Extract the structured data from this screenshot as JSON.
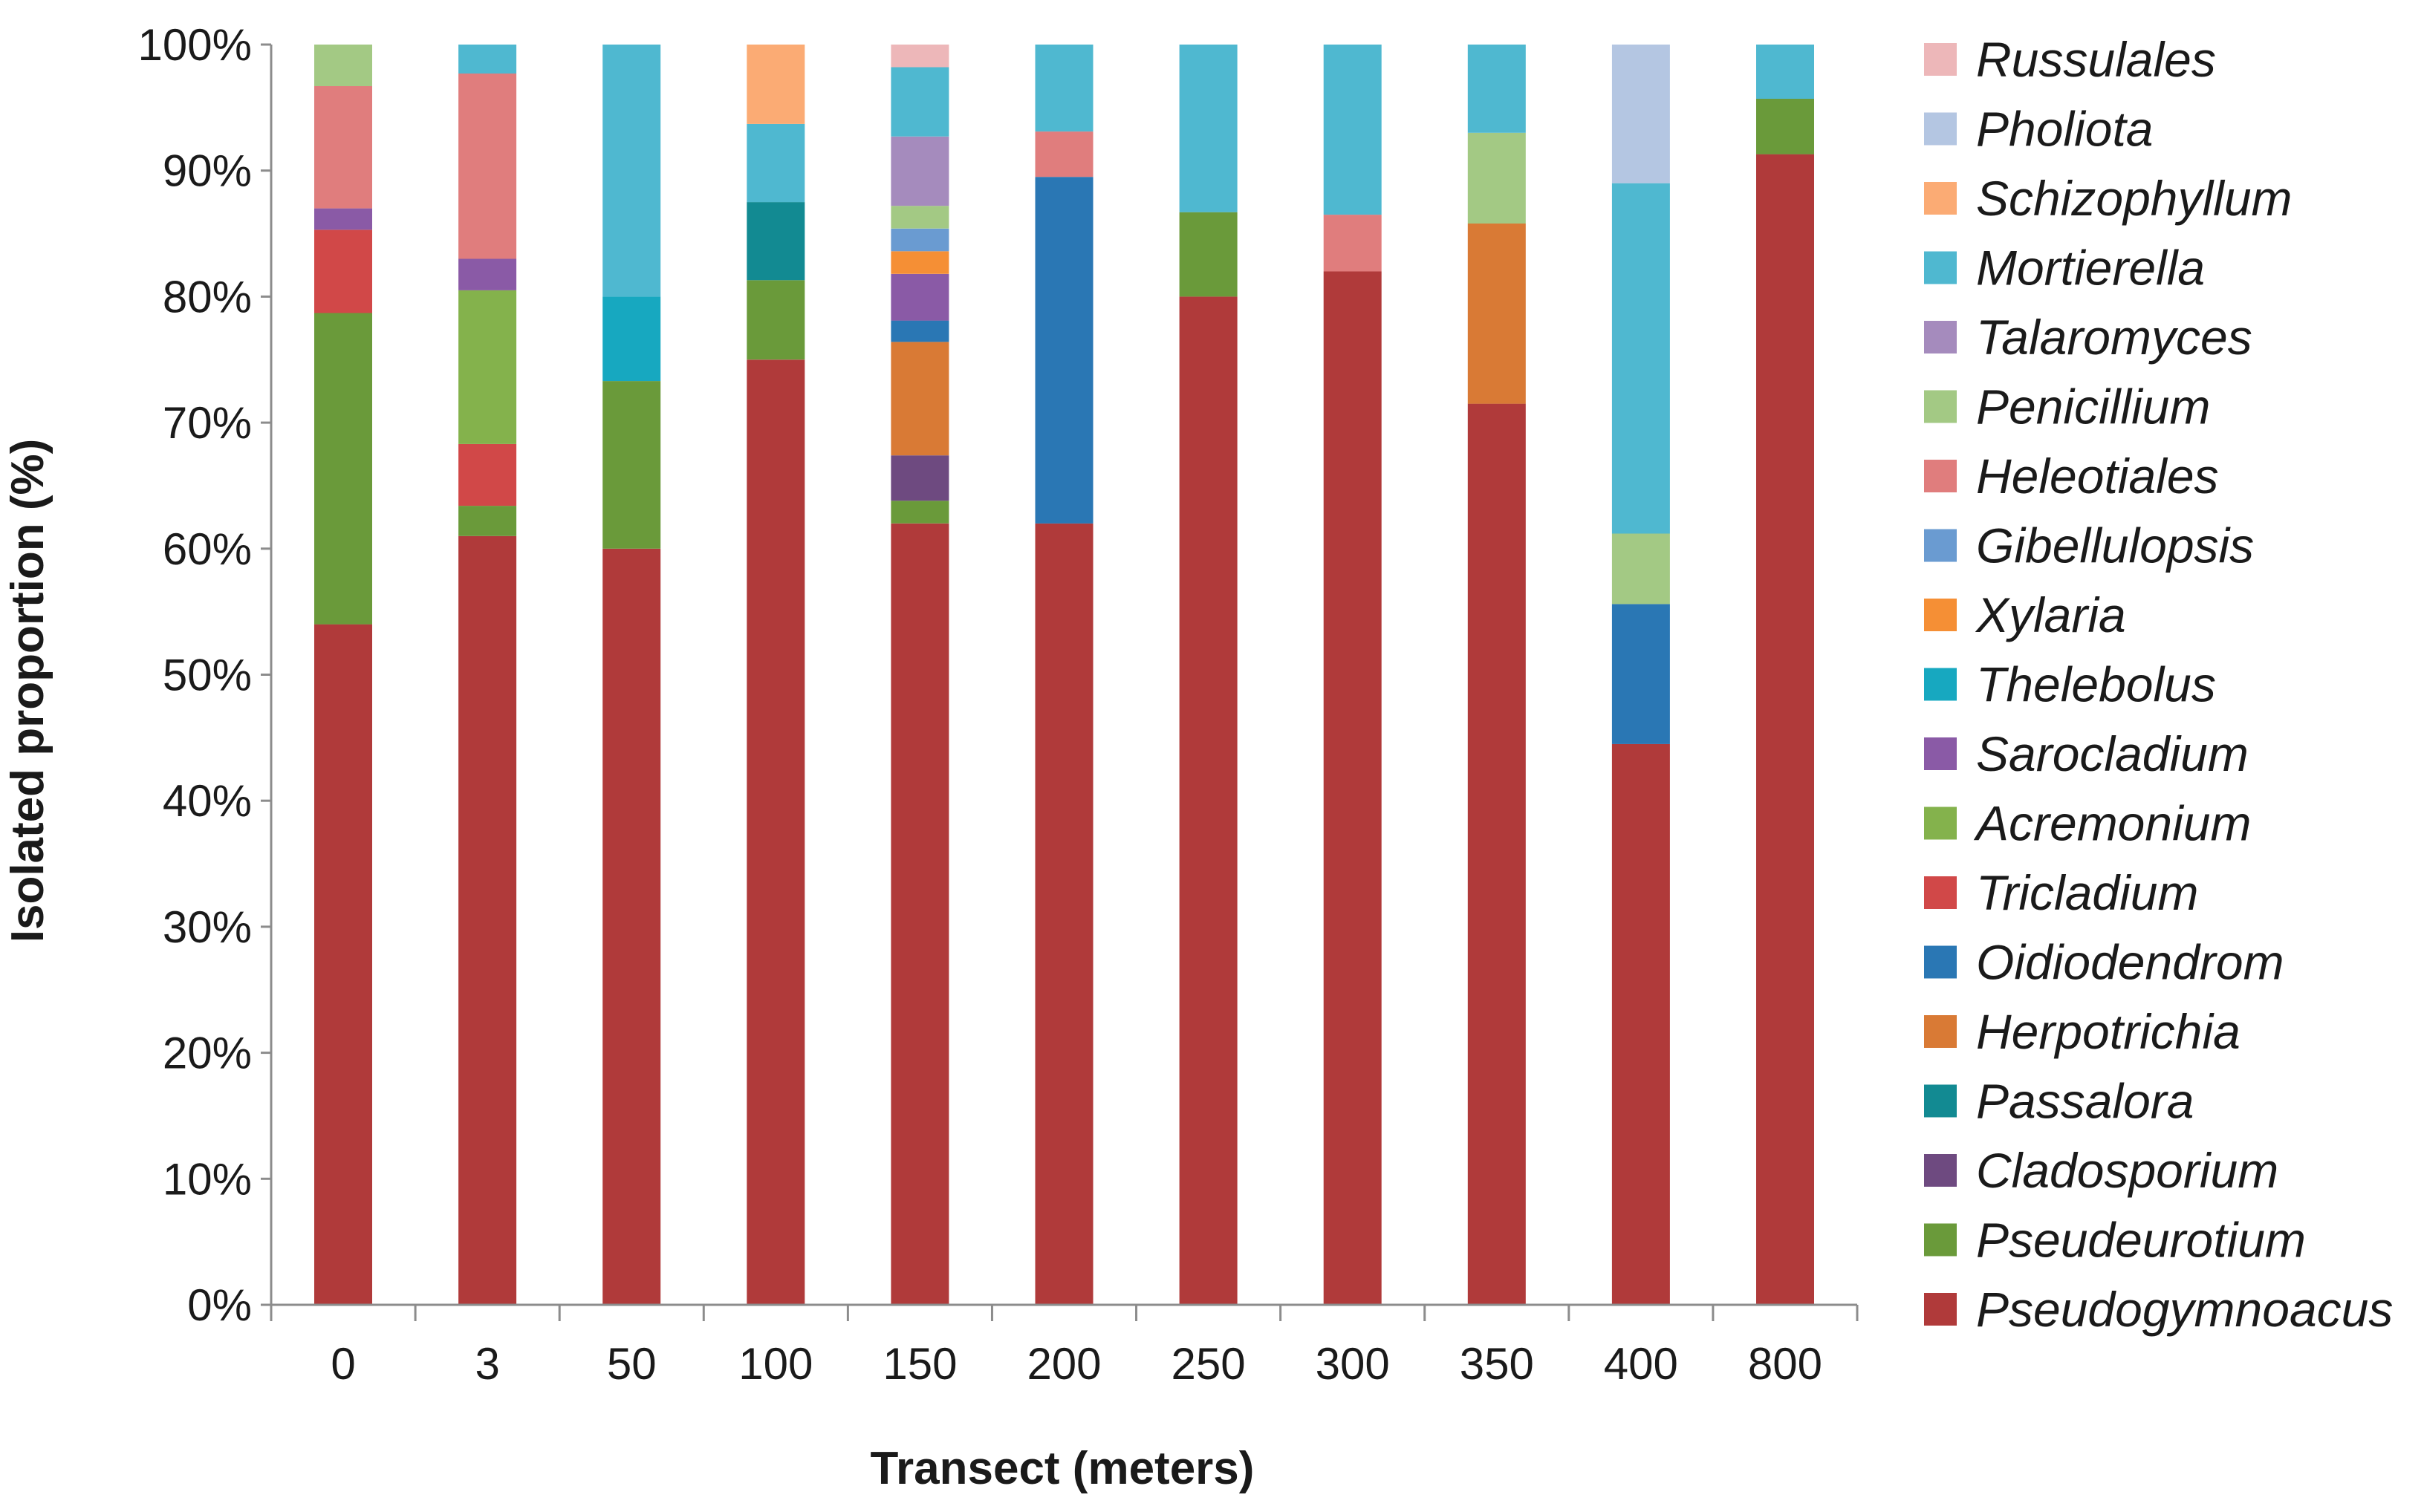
{
  "chart_data": {
    "type": "bar",
    "stacked": true,
    "normalized": true,
    "title": "",
    "xlabel": "Transect (meters)",
    "ylabel": "Isolated proportion (%)",
    "categories": [
      "0",
      "3",
      "50",
      "100",
      "150",
      "200",
      "250",
      "300",
      "350",
      "400",
      "800"
    ],
    "ylim": [
      0,
      100
    ],
    "yticks": [
      0,
      10,
      20,
      30,
      40,
      50,
      60,
      70,
      80,
      90,
      100
    ],
    "ytick_labels": [
      "0%",
      "10%",
      "20%",
      "30%",
      "40%",
      "50%",
      "60%",
      "70%",
      "80%",
      "90%",
      "100%"
    ],
    "grid": false,
    "legend_position": "right",
    "series": [
      {
        "name": "Pseudogymnoacus",
        "color": "#b03a3a",
        "values": [
          54.0,
          61.0,
          60.0,
          75.0,
          62.0,
          62.0,
          80.0,
          82.0,
          71.5,
          44.5,
          91.3
        ]
      },
      {
        "name": "Pseudeurotium",
        "color": "#6a9a3a",
        "values": [
          24.7,
          2.4,
          13.3,
          6.3,
          1.8,
          0,
          6.7,
          0,
          0,
          0,
          4.4
        ]
      },
      {
        "name": "Cladosporium",
        "color": "#6e4a80",
        "values": [
          0,
          0,
          0,
          0,
          3.6,
          0,
          0,
          0,
          0,
          0,
          0
        ]
      },
      {
        "name": "Passalora",
        "color": "#128a92",
        "values": [
          0,
          0,
          0,
          6.2,
          0,
          0,
          0,
          0,
          0,
          0,
          0
        ]
      },
      {
        "name": "Herpotrichia",
        "color": "#d97a35",
        "values": [
          0,
          0,
          0,
          0,
          9.0,
          0,
          0,
          0,
          14.3,
          0,
          0
        ]
      },
      {
        "name": "Oidiodendrom",
        "color": "#2a77b4",
        "values": [
          0,
          0,
          0,
          0,
          1.7,
          27.5,
          0,
          0,
          0,
          11.1,
          0
        ]
      },
      {
        "name": "Tricladium",
        "color": "#d14848",
        "values": [
          6.6,
          4.9,
          0,
          0,
          0,
          0,
          0,
          0,
          0,
          0,
          0
        ]
      },
      {
        "name": "Acremonium",
        "color": "#84b24c",
        "values": [
          0,
          12.2,
          0,
          0,
          0,
          0,
          0,
          0,
          0,
          0,
          0
        ]
      },
      {
        "name": "Sarocladium",
        "color": "#8a5aa6",
        "values": [
          1.7,
          2.5,
          0,
          0,
          3.7,
          0,
          0,
          0,
          0,
          0,
          0
        ]
      },
      {
        "name": "Thelebolus",
        "color": "#17a8c0",
        "values": [
          0,
          0,
          6.7,
          0,
          0,
          0,
          0,
          0,
          0,
          0,
          0
        ]
      },
      {
        "name": "Xylaria",
        "color": "#f58f35",
        "values": [
          0,
          0,
          0,
          0,
          1.8,
          0,
          0,
          0,
          0,
          0,
          0
        ]
      },
      {
        "name": "Gibellulopsis",
        "color": "#6a9bd1",
        "values": [
          0,
          0,
          0,
          0,
          1.8,
          0,
          0,
          0,
          0,
          0,
          0
        ]
      },
      {
        "name": "Heleotiales",
        "color": "#e07d7d",
        "values": [
          9.7,
          14.7,
          0,
          0,
          0,
          3.6,
          0,
          4.5,
          0,
          0,
          0
        ]
      },
      {
        "name": "Penicillium",
        "color": "#a3c984",
        "values": [
          3.3,
          0,
          0,
          0,
          1.8,
          0,
          0,
          0,
          7.2,
          5.6,
          0
        ]
      },
      {
        "name": "Talaromyces",
        "color": "#a58bbd",
        "values": [
          0,
          0,
          0,
          0,
          5.5,
          0,
          0,
          0,
          0,
          0,
          0
        ]
      },
      {
        "name": "Mortierella",
        "color": "#4fb8d0",
        "values": [
          0,
          2.3,
          20.0,
          6.2,
          5.5,
          6.9,
          13.3,
          13.5,
          7.0,
          27.8,
          4.3
        ]
      },
      {
        "name": "Schizophyllum",
        "color": "#fbab74",
        "values": [
          0,
          0,
          0,
          6.3,
          0,
          0,
          0,
          0,
          0,
          0,
          0
        ]
      },
      {
        "name": "Pholiota",
        "color": "#b4c6e2",
        "values": [
          0,
          0,
          0,
          0,
          0,
          0,
          0,
          0,
          0,
          11.0,
          0
        ]
      },
      {
        "name": "Russulales",
        "color": "#edb7b9",
        "values": [
          0,
          0,
          0,
          0,
          1.8,
          0,
          0,
          0,
          0,
          0,
          0
        ]
      }
    ],
    "legend_order": [
      "Russulales",
      "Pholiota",
      "Schizophyllum",
      "Mortierella",
      "Talaromyces",
      "Penicillium",
      "Heleotiales",
      "Gibellulopsis",
      "Xylaria",
      "Thelebolus",
      "Sarocladium",
      "Acremonium",
      "Tricladium",
      "Oidiodendrom",
      "Herpotrichia",
      "Passalora",
      "Cladosporium",
      "Pseudeurotium",
      "Pseudogymnoacus"
    ]
  }
}
